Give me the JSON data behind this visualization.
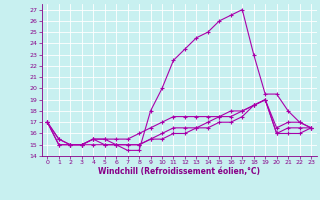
{
  "xlabel": "Windchill (Refroidissement éolien,°C)",
  "xlim": [
    -0.5,
    23.5
  ],
  "ylim": [
    14,
    27.5
  ],
  "xticks": [
    0,
    1,
    2,
    3,
    4,
    5,
    6,
    7,
    8,
    9,
    10,
    11,
    12,
    13,
    14,
    15,
    16,
    17,
    18,
    19,
    20,
    21,
    22,
    23
  ],
  "yticks": [
    14,
    15,
    16,
    17,
    18,
    19,
    20,
    21,
    22,
    23,
    24,
    25,
    26,
    27
  ],
  "background_color": "#c8f0f0",
  "grid_color": "#ffffff",
  "line_color": "#aa00aa",
  "lines": [
    {
      "x": [
        0,
        1,
        2,
        3,
        4,
        5,
        6,
        7,
        8,
        9,
        10,
        11,
        12,
        13,
        14,
        15,
        16,
        17,
        18,
        19,
        20,
        21,
        22,
        23
      ],
      "y": [
        17,
        15,
        15,
        15,
        15.5,
        15.5,
        15,
        14.5,
        14.5,
        18,
        20,
        22.5,
        23.5,
        24.5,
        25,
        26,
        26.5,
        27,
        23,
        19.5,
        19.5,
        18,
        17,
        16.5
      ]
    },
    {
      "x": [
        0,
        1,
        2,
        3,
        4,
        5,
        6,
        7,
        8,
        9,
        10,
        11,
        12,
        13,
        14,
        15,
        16,
        17,
        18,
        19,
        20,
        21,
        22,
        23
      ],
      "y": [
        17,
        15,
        15,
        15,
        15.5,
        15.5,
        15.5,
        15.5,
        16,
        16.5,
        17,
        17.5,
        17.5,
        17.5,
        17.5,
        17.5,
        18,
        18,
        18.5,
        19,
        16,
        16,
        16,
        16.5
      ]
    },
    {
      "x": [
        0,
        1,
        2,
        3,
        4,
        5,
        6,
        7,
        8,
        9,
        10,
        11,
        12,
        13,
        14,
        15,
        16,
        17,
        18,
        19,
        20,
        21,
        22,
        23
      ],
      "y": [
        17,
        15.5,
        15,
        15,
        15,
        15,
        15,
        15,
        15,
        15.5,
        16,
        16.5,
        16.5,
        16.5,
        17,
        17.5,
        17.5,
        18,
        18.5,
        19,
        16,
        16.5,
        16.5,
        16.5
      ]
    },
    {
      "x": [
        0,
        1,
        2,
        3,
        4,
        5,
        6,
        7,
        8,
        9,
        10,
        11,
        12,
        13,
        14,
        15,
        16,
        17,
        18,
        19,
        20,
        21,
        22,
        23
      ],
      "y": [
        17,
        15.5,
        15,
        15,
        15.5,
        15,
        15,
        15,
        15,
        15.5,
        15.5,
        16,
        16,
        16.5,
        16.5,
        17,
        17,
        17.5,
        18.5,
        19,
        16.5,
        17,
        17,
        16.5
      ]
    }
  ],
  "marker": "+",
  "marker_size": 3,
  "line_width": 0.8,
  "font_color": "#880088",
  "tick_fontsize": 4.5,
  "label_fontsize": 5.5,
  "spine_color": "#880088"
}
